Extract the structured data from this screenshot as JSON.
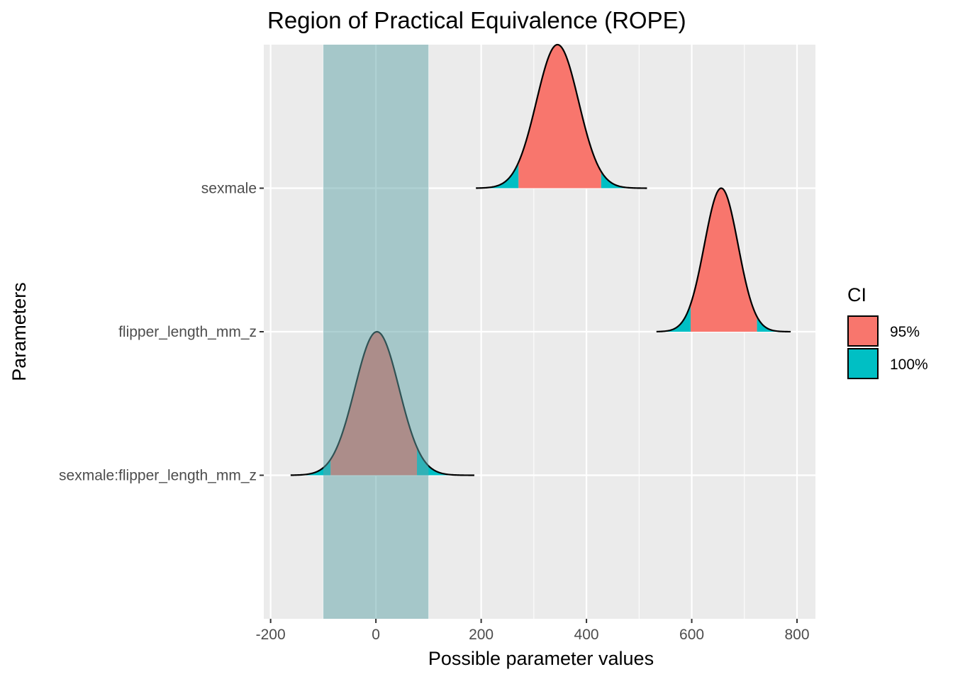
{
  "chart_data": {
    "type": "area",
    "title": "Region of Practical Equivalence (ROPE)",
    "xlabel": "Possible parameter values",
    "ylabel": "Parameters",
    "xlim": [
      -213,
      835
    ],
    "x_ticks": [
      -200,
      0,
      200,
      400,
      600,
      800
    ],
    "x_tick_labels": [
      "-200",
      "0",
      "200",
      "400",
      "600",
      "800"
    ],
    "x_minor_ticks": [
      -100,
      100,
      300,
      500,
      700
    ],
    "rope": [
      -100,
      100
    ],
    "grid": true,
    "legend": {
      "title": "CI",
      "position": "right",
      "entries": [
        {
          "label": "95%",
          "color": "#F8766D"
        },
        {
          "label": "100%",
          "color": "#00BFC4"
        }
      ]
    },
    "series": [
      {
        "name": "sexmale",
        "center": 345,
        "sd": 40,
        "min": 190,
        "max": 515,
        "ci95": [
          271,
          428
        ]
      },
      {
        "name": "flipper_length_mm_z",
        "center": 656,
        "sd": 32,
        "min": 533,
        "max": 788,
        "ci95": [
          598,
          724
        ]
      },
      {
        "name": "sexmale:flipper_length_mm_z",
        "center": 2,
        "sd": 42,
        "min": -162,
        "max": 187,
        "ci95": [
          -86,
          78
        ]
      }
    ],
    "colors": {
      "ci95": "#F8766D",
      "ci100": "#00BFC4",
      "rope": "#5FA3A8",
      "panel": "#EBEBEB"
    }
  }
}
